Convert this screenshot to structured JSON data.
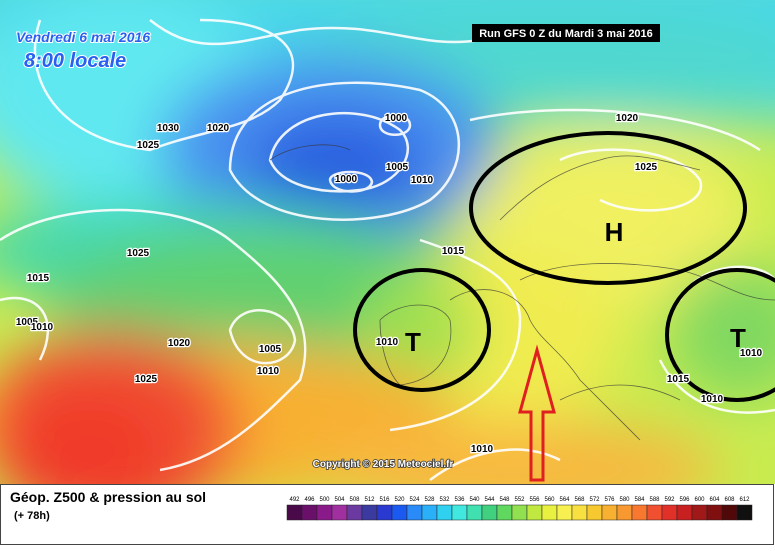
{
  "header": {
    "date": "Vendredi 6 mai 2016",
    "time": "8:00 locale",
    "run": "Run GFS 0 Z du Mardi 3 mai 2016"
  },
  "map": {
    "isobar_labels": [
      "1030",
      "1020",
      "1025",
      "1000",
      "1000",
      "1005",
      "1010",
      "1020",
      "1025",
      "1025",
      "1015",
      "1015",
      "1005",
      "1010",
      "1010",
      "1020",
      "1005",
      "1010",
      "1025",
      "1010",
      "1015",
      "1010",
      "1010"
    ],
    "pressure_systems": [
      "H",
      "T",
      "T"
    ],
    "copyright": "Copyright © 2015 Meteociel.fr"
  },
  "footer": {
    "title": "Géop. Z500 & pression au sol",
    "lead_time": "(+ 78h)",
    "scale": {
      "labels": [
        492,
        496,
        500,
        504,
        508,
        512,
        516,
        520,
        524,
        528,
        532,
        536,
        540,
        544,
        548,
        552,
        556,
        560,
        564,
        568,
        572,
        576,
        580,
        584,
        588,
        592,
        596,
        600,
        604,
        608,
        612
      ],
      "colors": [
        "#4a0a4a",
        "#6a106a",
        "#8a1a8a",
        "#a030a0",
        "#6a3aa0",
        "#3a3aa0",
        "#2a3ad0",
        "#1a5af0",
        "#2a8af8",
        "#2ab0f8",
        "#30d0f0",
        "#40e8e0",
        "#40e0b0",
        "#40d080",
        "#60d860",
        "#90e050",
        "#c0e840",
        "#e8f040",
        "#f8f050",
        "#f8e040",
        "#f8c830",
        "#f8b030",
        "#f89830",
        "#f87830",
        "#f05030",
        "#e03028",
        "#c82020",
        "#a01818",
        "#801010",
        "#500808",
        "#101010"
      ]
    }
  }
}
